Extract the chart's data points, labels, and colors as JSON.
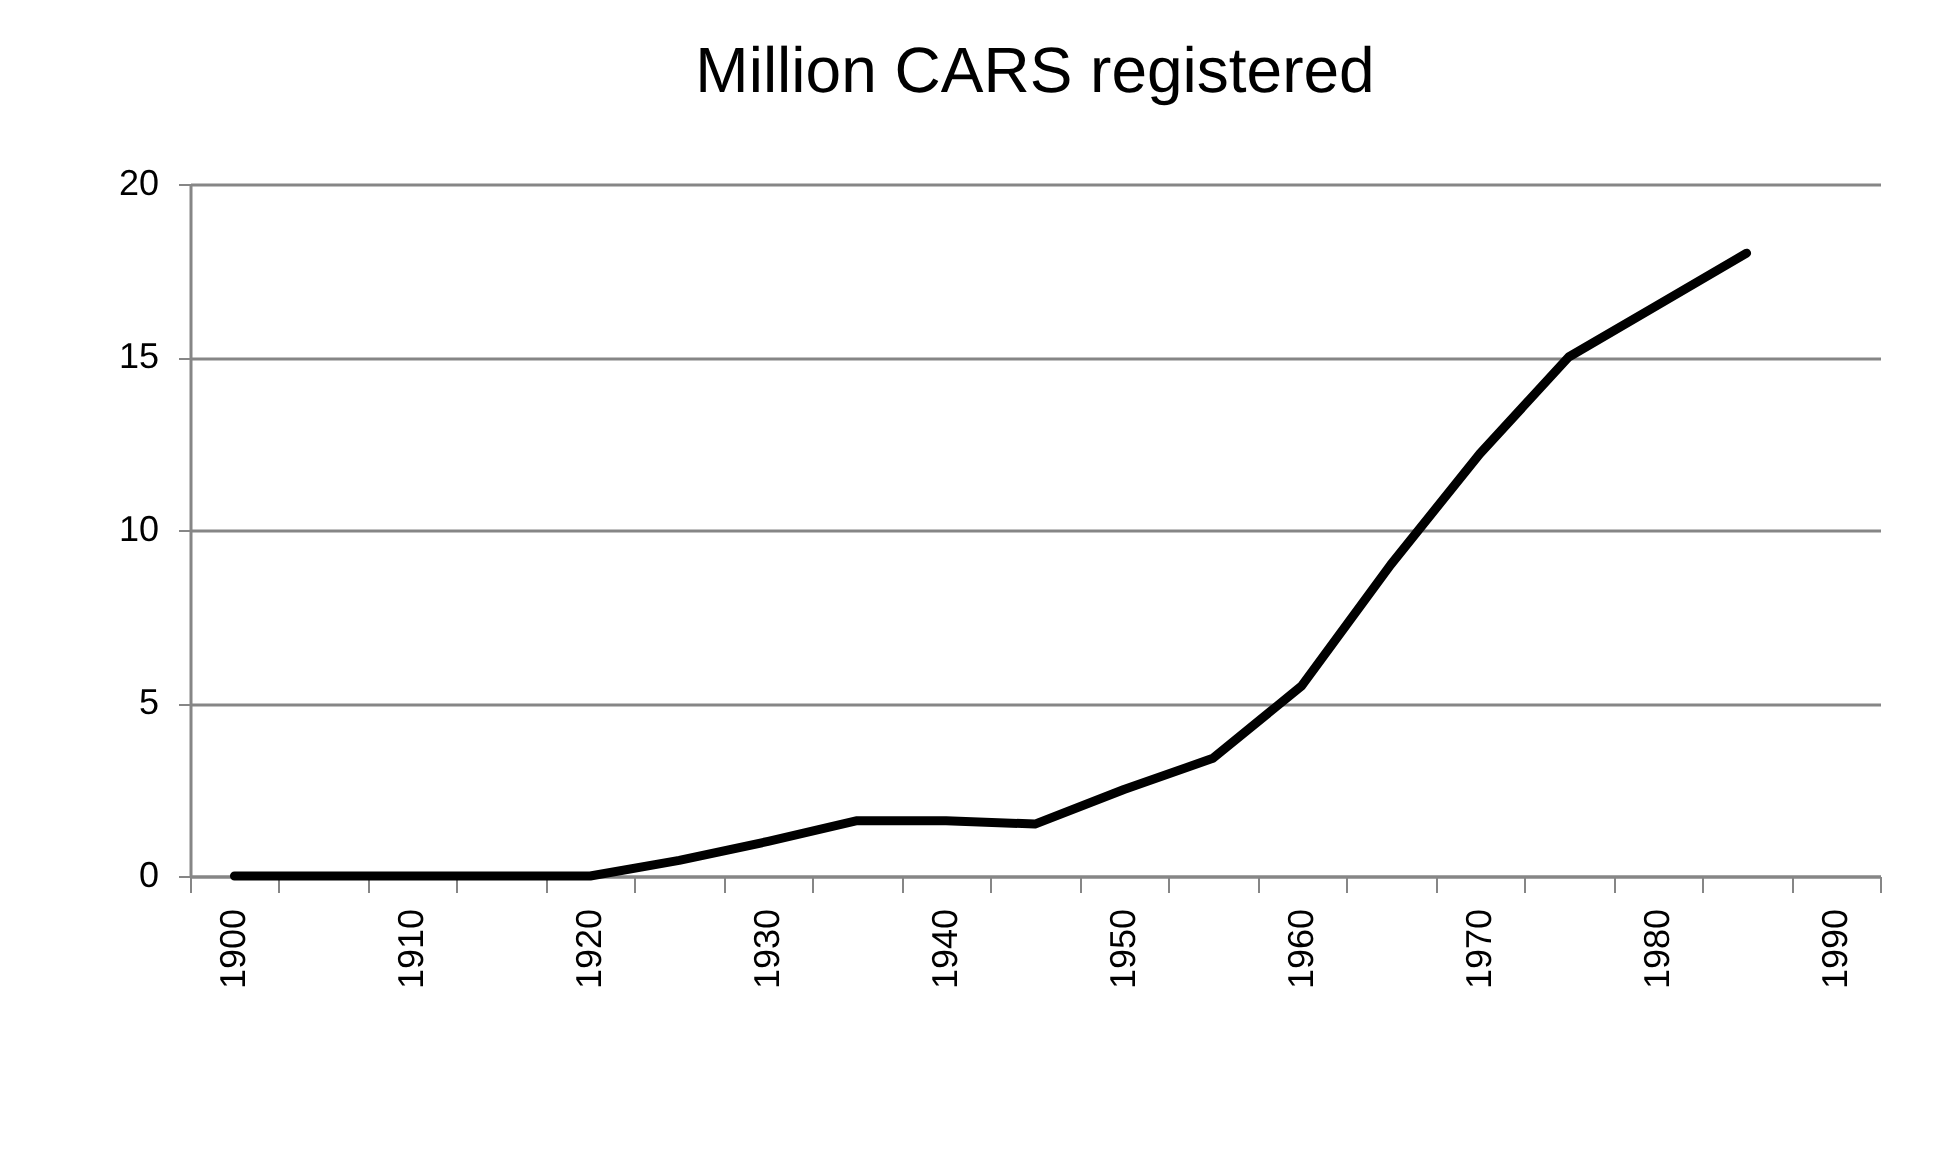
{
  "chart_data": {
    "type": "line",
    "title": "Million CARS registered",
    "categories": [
      "1900",
      null,
      "1910",
      null,
      "1920",
      null,
      "1930",
      null,
      "1940",
      null,
      "1950",
      null,
      "1960",
      null,
      "1970",
      null,
      "1980",
      null,
      "1990"
    ],
    "series": [
      {
        "color": "#000000",
        "values": [
          0,
          0,
          0,
          0,
          0,
          0.45,
          1.0,
          1.6,
          1.6,
          1.5,
          2.5,
          3.4,
          5.5,
          9,
          12.2,
          15,
          16.5,
          18,
          null
        ]
      }
    ],
    "ylim": [
      0,
      20
    ],
    "yticks": [
      0,
      5,
      10,
      15,
      20
    ],
    "grid": "y",
    "marker": "none",
    "line_style": "solid"
  }
}
